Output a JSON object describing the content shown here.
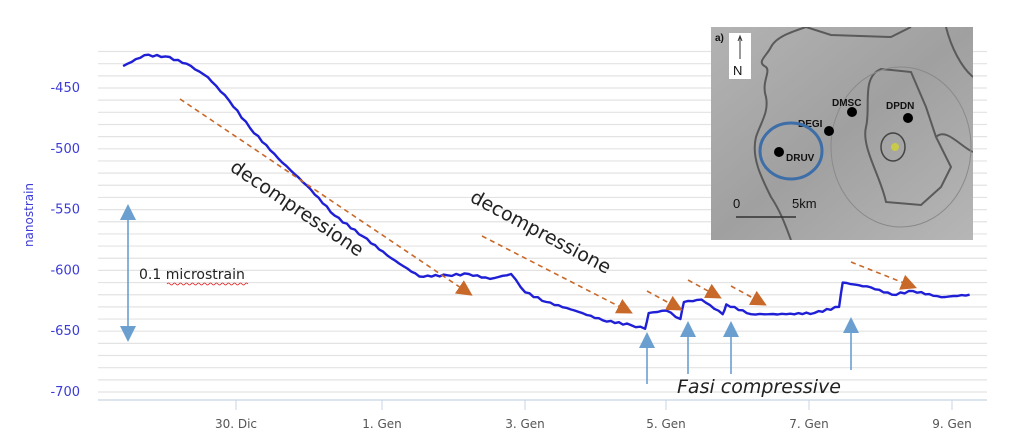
{
  "chart_data": {
    "type": "line",
    "title": "",
    "xlabel": "",
    "ylabel": "nanostrain",
    "ylim": [
      -705,
      -418
    ],
    "y_ticks": [
      -450,
      -500,
      -550,
      -600,
      -650,
      -700
    ],
    "y_minor_grid_step": 10,
    "x_ticks": [
      "30. Dic",
      "1. Gen",
      "3. Gen",
      "5. Gen",
      "7. Gen",
      "9. Gen"
    ],
    "grid": true,
    "legend": null,
    "series": [
      {
        "name": "DRUV strain",
        "color": "#1f1fd6",
        "x": [
          "28.4 Dic",
          "28.7 Dic",
          "29.0 Dic",
          "29.3 Dic",
          "29.6 Dic",
          "29.9 Dic",
          "30.2 Dic",
          "30.6 Dic",
          "31.0 Dic",
          "31.4 Dic",
          "31.8 Dic",
          "1.2 Gen",
          "1.6 Gen",
          "2.0 Gen",
          "2.3 Gen",
          "2.6 Gen",
          "2.9 Gen",
          "3.1 Gen",
          "3.4 Gen",
          "3.8 Gen",
          "4.2 Gen",
          "4.6 Gen",
          "4.8 Gen",
          "4.85 Gen",
          "5.1 Gen",
          "5.3 Gen",
          "5.35 Gen",
          "5.6 Gen",
          "5.9 Gen",
          "5.95 Gen",
          "6.3 Gen",
          "6.8 Gen",
          "7.2 Gen",
          "7.55 Gen",
          "7.6 Gen",
          "8.0 Gen",
          "8.3 Gen",
          "8.6 Gen",
          "9.0 Gen",
          "9.4 Gen"
        ],
        "values": [
          -432,
          -423,
          -424,
          -430,
          -441,
          -460,
          -483,
          -508,
          -530,
          -555,
          -572,
          -590,
          -605,
          -604,
          -603,
          -607,
          -603,
          -618,
          -626,
          -633,
          -641,
          -645,
          -648,
          -635,
          -633,
          -640,
          -626,
          -624,
          -636,
          -628,
          -636,
          -636,
          -635,
          -630,
          -610,
          -614,
          -620,
          -617,
          -622,
          -620
        ]
      }
    ],
    "annotations": {
      "decompression_label_1": "decompressione",
      "decompression_label_2": "decompressione",
      "compression_label": "Fasi compressive",
      "scale_bar_label": "0.1 microstrain",
      "decompression_arrow_color": "#c8692a",
      "compression_arrow_color": "#6a9fd0"
    },
    "inset_map": {
      "panel_label": "a)",
      "north_label": "N",
      "stations": [
        "DMSC",
        "DPDN",
        "DEGI",
        "DRUV"
      ],
      "highlighted_station": "DRUV",
      "scale_start": "0",
      "scale_end": "5km",
      "highlight_color": "#3d6ea8"
    }
  }
}
